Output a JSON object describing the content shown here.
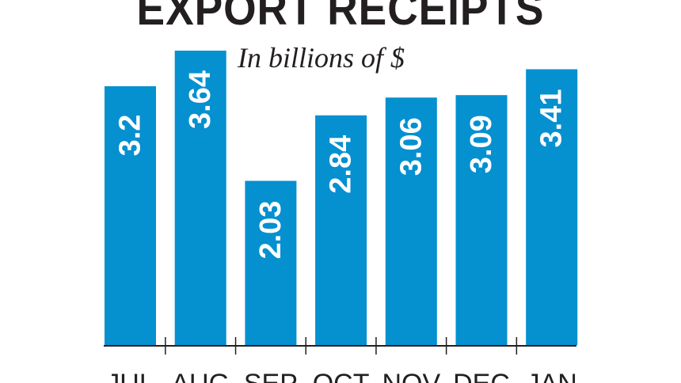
{
  "chart_data": {
    "type": "bar",
    "title": "EXPORT RECEIPTS",
    "subtitle": "In billions of $",
    "categories": [
      "JUL",
      "AUG",
      "SEP",
      "OCT",
      "NOV",
      "DEC",
      "JAN"
    ],
    "values": [
      3.2,
      3.64,
      2.03,
      2.84,
      3.06,
      3.09,
      3.41
    ],
    "value_labels": [
      "3.2",
      "3.64",
      "2.03",
      "2.84",
      "3.06",
      "3.09",
      "3.41"
    ],
    "ylim": [
      0,
      3.64
    ],
    "grid": false,
    "legend": "none",
    "bar_color": "#0590d0",
    "axis_color": "#231f20"
  }
}
